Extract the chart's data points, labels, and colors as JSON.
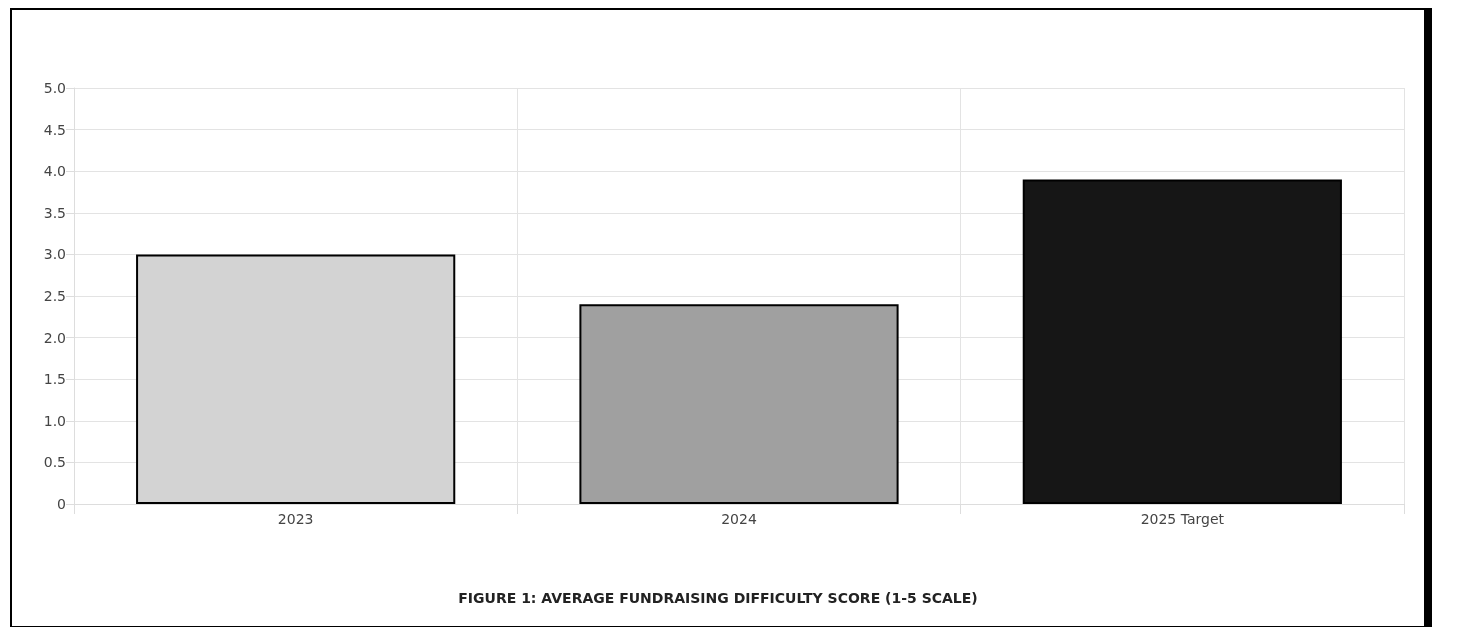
{
  "chart_data": {
    "type": "bar",
    "title": "FIGURE 1: AVERAGE FUNDRAISING DIFFICULTY SCORE (1-5 SCALE)",
    "categories": [
      "2023",
      "2024",
      "2025 Target"
    ],
    "values": [
      3.0,
      2.4,
      3.9
    ],
    "colors": [
      "#d3d3d3",
      "#a0a0a0",
      "#161616"
    ],
    "ylim": [
      0,
      5
    ],
    "yticks": [
      0,
      0.5,
      {
        "value": 1,
        "label": "1.0"
      },
      1.5,
      {
        "value": 2,
        "label": "2.0"
      },
      2.5,
      {
        "value": 3,
        "label": "3.0"
      },
      3.5,
      {
        "value": 4,
        "label": "4.0"
      },
      4.5,
      {
        "value": 5,
        "label": "5.0"
      }
    ],
    "grid": true
  }
}
